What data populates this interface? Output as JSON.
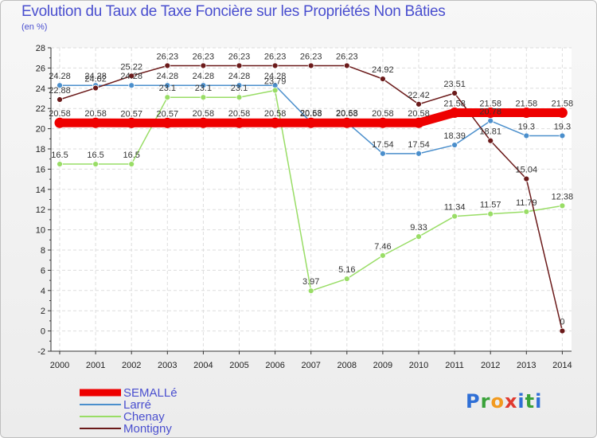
{
  "title": "Evolution du Taux de Taxe Foncière sur les Propriétés Non Bâties",
  "subtitle": "(en %)",
  "logo": "Proxiti",
  "chart_data": {
    "type": "line",
    "title": "Evolution du Taux de Taxe Foncière sur les Propriétés Non Bâties",
    "ylabel": "(en %)",
    "xlabel": "",
    "x": [
      "2000",
      "2001",
      "2002",
      "2003",
      "2004",
      "2005",
      "2006",
      "2007",
      "2008",
      "2009",
      "2010",
      "2011",
      "2012",
      "2013",
      "2014"
    ],
    "ylim": [
      -2,
      28
    ],
    "yticks": [
      -2,
      0,
      2,
      4,
      6,
      8,
      10,
      12,
      14,
      16,
      18,
      20,
      22,
      24,
      26,
      28
    ],
    "grid": true,
    "legend_position": "bottom-left",
    "series": [
      {
        "name": "SEMALLé",
        "color": "#ee0000",
        "values": [
          20.58,
          20.58,
          20.57,
          20.57,
          20.58,
          20.58,
          20.58,
          20.58,
          20.58,
          20.58,
          20.58,
          21.58,
          21.58,
          21.58,
          21.58
        ]
      },
      {
        "name": "Larré",
        "color": "#4b8fcc",
        "values": [
          24.28,
          24.28,
          24.28,
          24.28,
          24.28,
          24.28,
          24.28,
          20.63,
          20.63,
          17.54,
          17.54,
          18.39,
          20.78,
          19.3,
          19.3
        ]
      },
      {
        "name": "Chenay",
        "color": "#99dd66",
        "values": [
          16.5,
          16.5,
          16.5,
          23.1,
          23.1,
          23.1,
          23.79,
          3.97,
          5.16,
          7.46,
          9.33,
          11.34,
          11.57,
          11.79,
          12.38
        ]
      },
      {
        "name": "Montigny",
        "color": "#6b1a1a",
        "values": [
          22.88,
          24.02,
          25.22,
          26.23,
          26.23,
          26.23,
          26.23,
          26.23,
          26.23,
          24.92,
          22.42,
          23.51,
          18.81,
          15.04,
          0
        ]
      }
    ]
  }
}
